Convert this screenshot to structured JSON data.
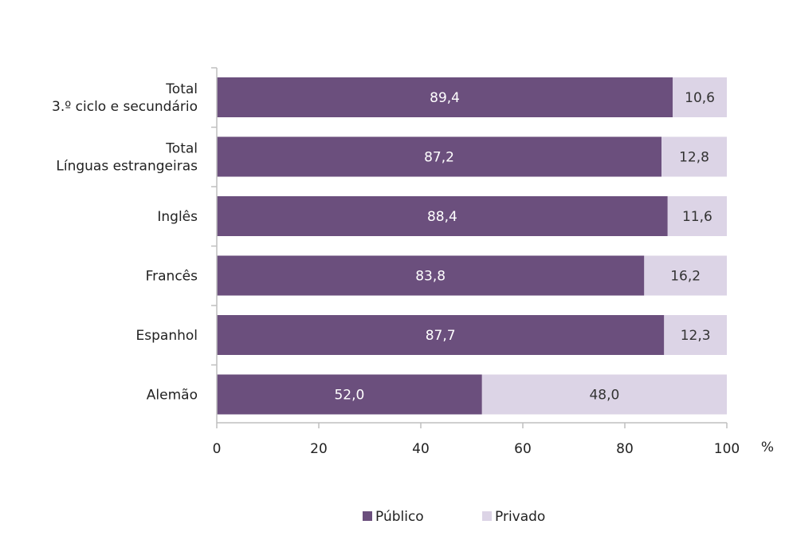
{
  "chart_data": {
    "type": "bar",
    "orientation": "horizontal",
    "stacked": true,
    "categories": [
      "Total\n3.º ciclo e secundário",
      "Total\nLínguas estrangeiras",
      "Inglês",
      "Francês",
      "Espanhol",
      "Alemão"
    ],
    "series": [
      {
        "name": "Público",
        "color": "#6b4f7d",
        "values": [
          89.4,
          87.2,
          88.4,
          83.8,
          87.7,
          52.0
        ],
        "labels": [
          "89,4",
          "87,2",
          "88,4",
          "83,8",
          "87,7",
          "52,0"
        ]
      },
      {
        "name": "Privado",
        "color": "#dcd4e6",
        "values": [
          10.6,
          12.8,
          11.6,
          16.2,
          12.3,
          48.0
        ],
        "labels": [
          "10,6",
          "12,8",
          "11,6",
          "16,2",
          "12,3",
          "48,0"
        ]
      }
    ],
    "xlim": [
      0,
      100
    ],
    "xticks": [
      0,
      20,
      40,
      60,
      80,
      100
    ],
    "xunit": "%",
    "grid": false,
    "legend_position": "bottom"
  },
  "colors": {
    "public": "#6b4f7d",
    "private": "#dcd4e6",
    "public_label": "#ffffff",
    "private_label": "#333333",
    "axis": "#bfbfbf",
    "text": "#222222"
  }
}
